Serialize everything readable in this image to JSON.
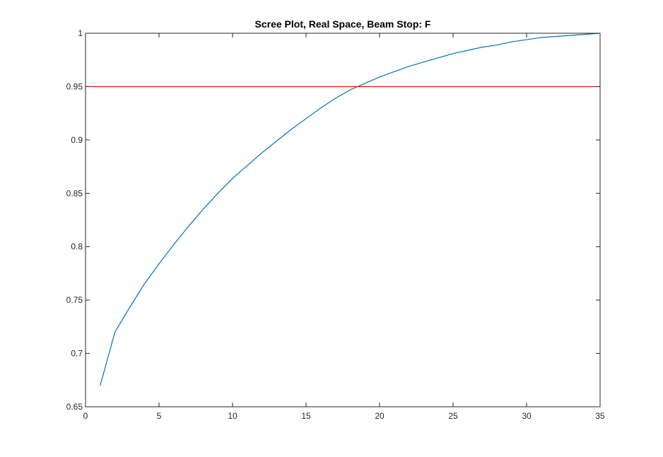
{
  "chart_data": {
    "type": "line",
    "title": "Scree Plot, Real Space, Beam Stop: F",
    "xlabel": "",
    "ylabel": "",
    "xlim": [
      0,
      35
    ],
    "ylim": [
      0.65,
      1
    ],
    "x_ticks": [
      "0",
      "5",
      "10",
      "15",
      "20",
      "25",
      "30",
      "35"
    ],
    "y_ticks": [
      "0.65",
      "0.7",
      "0.75",
      "0.8",
      "0.85",
      "0.9",
      "0.95",
      "1"
    ],
    "grid": false,
    "series": [
      {
        "color": "#0072bd",
        "x": [
          1,
          2,
          3,
          4,
          5,
          6,
          7,
          8,
          9,
          10,
          11,
          12,
          13,
          14,
          15,
          16,
          17,
          18,
          19,
          20,
          21,
          22,
          23,
          24,
          25,
          26,
          27,
          28,
          29,
          30,
          31,
          32,
          33,
          34,
          35
        ],
        "y": [
          0.67,
          0.72,
          0.743,
          0.765,
          0.784,
          0.802,
          0.819,
          0.835,
          0.85,
          0.864,
          0.876,
          0.888,
          0.899,
          0.91,
          0.92,
          0.93,
          0.939,
          0.947,
          0.953,
          0.959,
          0.964,
          0.969,
          0.973,
          0.977,
          0.981,
          0.984,
          0.987,
          0.989,
          0.992,
          0.994,
          0.996,
          0.997,
          0.998,
          0.999,
          1.0
        ]
      },
      {
        "color": "#ff0000",
        "x": [
          0,
          35
        ],
        "y": [
          0.95,
          0.95
        ]
      }
    ]
  }
}
